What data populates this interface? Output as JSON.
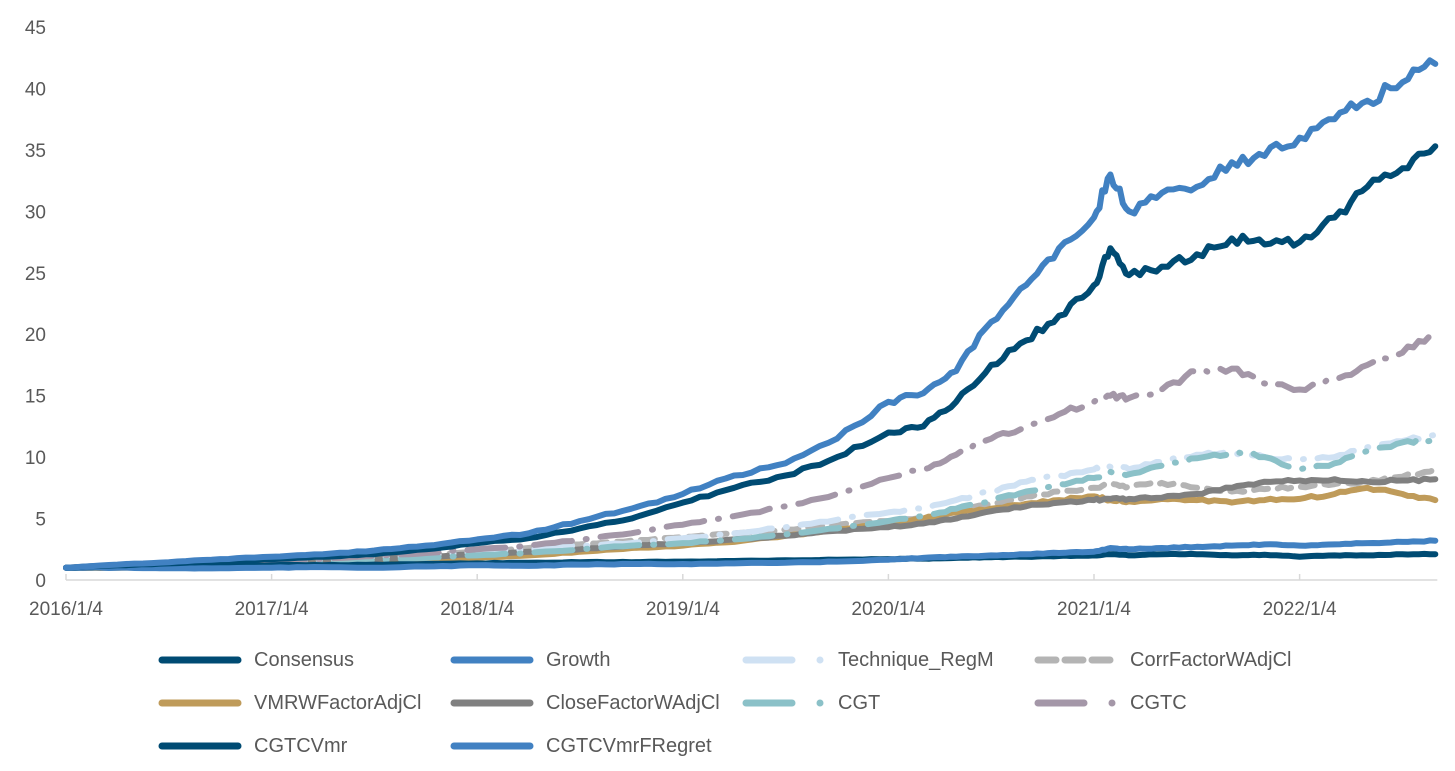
{
  "chart_data": {
    "type": "line",
    "title": "",
    "xlabel": "",
    "ylabel": "",
    "ylim": [
      0,
      45
    ],
    "yticks": [
      "0",
      "5",
      "10",
      "15",
      "20",
      "25",
      "30",
      "35",
      "40",
      "45"
    ],
    "xticks": [
      "2016/1/4",
      "2017/1/4",
      "2018/1/4",
      "2019/1/4",
      "2020/1/4",
      "2021/1/4",
      "2022/1/4"
    ],
    "x_range_years": [
      2016.0,
      2022.66
    ],
    "grid": false,
    "legend_position": "bottom",
    "x": [
      2016.0,
      2016.25,
      2016.5,
      2016.75,
      2017.0,
      2017.25,
      2017.5,
      2017.75,
      2018.0,
      2018.25,
      2018.5,
      2018.75,
      2019.0,
      2019.25,
      2019.5,
      2019.75,
      2020.0,
      2020.17,
      2020.33,
      2020.5,
      2020.67,
      2020.83,
      2021.0,
      2021.08,
      2021.17,
      2021.33,
      2021.5,
      2021.67,
      2021.83,
      2022.0,
      2022.17,
      2022.33,
      2022.5,
      2022.66
    ],
    "series": [
      {
        "name": "Consensus",
        "color": "#004B73",
        "style": "solid",
        "values": [
          1.0,
          1.05,
          1.1,
          1.15,
          1.2,
          1.2,
          1.25,
          1.3,
          1.35,
          1.4,
          1.45,
          1.45,
          1.5,
          1.55,
          1.6,
          1.65,
          1.7,
          1.75,
          1.8,
          1.85,
          1.9,
          1.95,
          2.0,
          2.1,
          2.0,
          2.1,
          2.1,
          2.0,
          2.05,
          1.9,
          2.0,
          2.0,
          2.1,
          2.1
        ]
      },
      {
        "name": "Growth",
        "color": "#4181C2",
        "style": "solid",
        "values": [
          1.0,
          1.0,
          0.95,
          0.95,
          1.0,
          1.05,
          1.0,
          1.1,
          1.2,
          1.15,
          1.25,
          1.3,
          1.3,
          1.35,
          1.4,
          1.5,
          1.65,
          1.8,
          1.9,
          2.0,
          2.1,
          2.2,
          2.3,
          2.6,
          2.5,
          2.6,
          2.7,
          2.8,
          2.9,
          2.8,
          2.9,
          3.0,
          3.1,
          3.2
        ]
      },
      {
        "name": "Technique_RegM",
        "color": "#CFE1F3",
        "style": "dash-dot",
        "values": [
          1.0,
          1.1,
          1.2,
          1.3,
          1.45,
          1.6,
          1.8,
          2.0,
          2.3,
          2.5,
          2.8,
          3.0,
          3.4,
          3.8,
          4.3,
          4.9,
          5.5,
          5.8,
          6.5,
          7.2,
          8.0,
          8.5,
          9.0,
          9.2,
          9.0,
          9.6,
          10.2,
          10.3,
          10.0,
          9.8,
          10.0,
          10.8,
          11.3,
          11.8
        ]
      },
      {
        "name": "CorrFactorWAdjCl",
        "color": "#B4B4B4",
        "style": "dashed",
        "values": [
          1.0,
          1.1,
          1.2,
          1.3,
          1.45,
          1.6,
          1.8,
          2.0,
          2.3,
          2.6,
          2.9,
          3.2,
          3.5,
          3.8,
          4.1,
          4.5,
          4.8,
          5.0,
          5.6,
          6.2,
          6.8,
          7.2,
          7.5,
          7.8,
          7.6,
          7.9,
          7.5,
          7.2,
          7.4,
          7.6,
          7.8,
          8.0,
          8.4,
          9.0
        ]
      },
      {
        "name": "VMRWFactorAdjCl",
        "color": "#BF9B5A",
        "style": "solid",
        "values": [
          1.0,
          1.0,
          1.05,
          1.1,
          1.2,
          1.3,
          1.45,
          1.6,
          1.8,
          2.0,
          2.3,
          2.6,
          2.8,
          3.1,
          3.6,
          4.1,
          4.6,
          5.0,
          5.5,
          5.8,
          6.2,
          6.5,
          6.8,
          6.5,
          6.4,
          6.6,
          6.5,
          6.3,
          6.5,
          6.6,
          7.0,
          7.5,
          7.0,
          6.5
        ]
      },
      {
        "name": "CloseFactorWAdjCl",
        "color": "#808080",
        "style": "solid",
        "values": [
          1.0,
          1.05,
          1.1,
          1.2,
          1.35,
          1.5,
          1.7,
          1.9,
          2.1,
          2.3,
          2.5,
          2.8,
          3.0,
          3.3,
          3.6,
          4.0,
          4.3,
          4.6,
          5.0,
          5.6,
          6.0,
          6.3,
          6.5,
          6.6,
          6.6,
          6.7,
          7.0,
          7.5,
          8.0,
          8.1,
          8.2,
          8.0,
          8.1,
          8.2
        ]
      },
      {
        "name": "CGT",
        "color": "#8BC1C8",
        "style": "dash-dot",
        "values": [
          1.0,
          1.05,
          1.1,
          1.2,
          1.3,
          1.45,
          1.6,
          1.8,
          2.0,
          2.2,
          2.5,
          2.8,
          3.0,
          3.3,
          3.7,
          4.2,
          4.8,
          5.2,
          5.8,
          6.5,
          7.2,
          7.8,
          8.3,
          8.8,
          8.6,
          9.3,
          9.9,
          10.4,
          10.0,
          9.0,
          9.5,
          10.5,
          11.2,
          11.5
        ]
      },
      {
        "name": "CGTC",
        "color": "#A497A8",
        "style": "dash-dot",
        "values": [
          1.0,
          1.1,
          1.2,
          1.35,
          1.5,
          1.7,
          1.95,
          2.2,
          2.5,
          2.8,
          3.3,
          3.8,
          4.5,
          5.2,
          6.0,
          7.0,
          8.3,
          9.0,
          10.2,
          11.5,
          12.4,
          13.5,
          14.5,
          15.0,
          14.8,
          15.5,
          17.0,
          17.2,
          16.0,
          15.5,
          16.3,
          17.5,
          18.5,
          20.0
        ]
      },
      {
        "name": "CGTCVmr",
        "color": "#004B73",
        "style": "solid",
        "values": [
          1.0,
          1.2,
          1.35,
          1.55,
          1.7,
          1.9,
          2.1,
          2.5,
          3.0,
          3.4,
          4.2,
          5.0,
          6.3,
          7.5,
          8.5,
          10.0,
          12.0,
          12.5,
          14.5,
          17.5,
          19.5,
          21.5,
          24.0,
          27.0,
          24.8,
          25.5,
          26.5,
          27.8,
          27.3,
          27.5,
          29.5,
          32.0,
          33.5,
          35.3
        ]
      },
      {
        "name": "CGTCVmrFRegret",
        "color": "#4181C2",
        "style": "solid",
        "values": [
          1.0,
          1.25,
          1.45,
          1.7,
          1.9,
          2.1,
          2.4,
          2.8,
          3.3,
          3.8,
          4.8,
          5.8,
          7.0,
          8.5,
          9.5,
          11.5,
          14.5,
          15.2,
          17.0,
          21.0,
          24.0,
          27.0,
          29.5,
          33.0,
          30.0,
          31.5,
          32.0,
          34.0,
          34.5,
          36.0,
          37.5,
          39.0,
          40.5,
          42.0
        ]
      }
    ]
  }
}
